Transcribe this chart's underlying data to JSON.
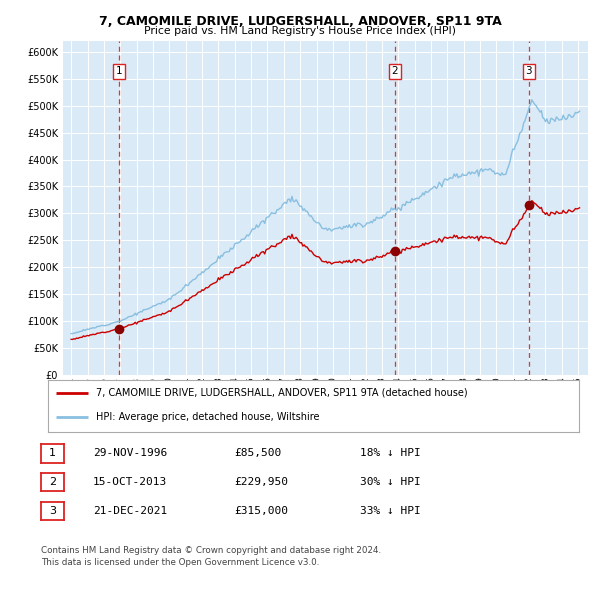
{
  "title": "7, CAMOMILE DRIVE, LUDGERSHALL, ANDOVER, SP11 9TA",
  "subtitle": "Price paid vs. HM Land Registry's House Price Index (HPI)",
  "legend_line1": "7, CAMOMILE DRIVE, LUDGERSHALL, ANDOVER, SP11 9TA (detached house)",
  "legend_line2": "HPI: Average price, detached house, Wiltshire",
  "sale1_date": "29-NOV-1996",
  "sale1_price": 85500,
  "sale1_pct": "18% ↓ HPI",
  "sale2_date": "15-OCT-2013",
  "sale2_price": 229950,
  "sale2_pct": "30% ↓ HPI",
  "sale3_date": "21-DEC-2021",
  "sale3_price": 315000,
  "sale3_pct": "33% ↓ HPI",
  "footer": "Contains HM Land Registry data © Crown copyright and database right 2024.\nThis data is licensed under the Open Government Licence v3.0.",
  "hpi_color": "#89bfe0",
  "price_color": "#cc0000",
  "chart_bg": "#daeaf7",
  "grid_color": "#ffffff",
  "sale_marker_color": "#8b0000",
  "vline_color": "#dd2222",
  "ylim": [
    0,
    620000
  ],
  "yticks": [
    0,
    50000,
    100000,
    150000,
    200000,
    250000,
    300000,
    350000,
    400000,
    450000,
    500000,
    550000,
    600000
  ],
  "sale1_x": 1996.92,
  "sale2_x": 2013.79,
  "sale3_x": 2021.97,
  "xlim_left": 1993.5,
  "xlim_right": 2025.6
}
